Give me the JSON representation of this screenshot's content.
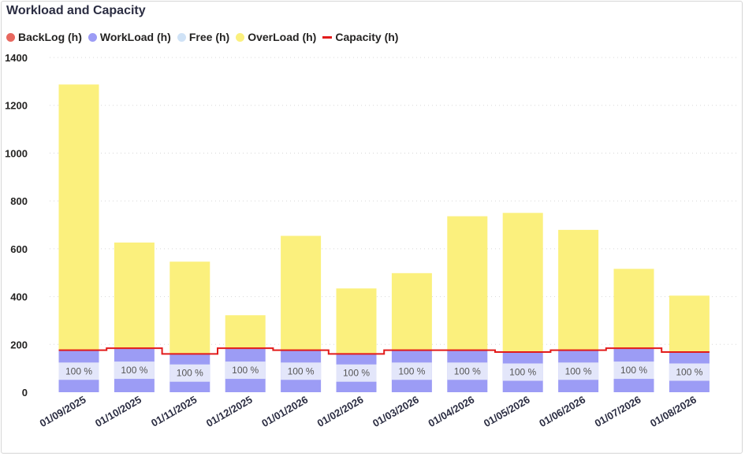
{
  "chart_data": {
    "type": "bar",
    "title": "Workload and Capacity",
    "categories": [
      "01/09/2025",
      "01/10/2025",
      "01/11/2025",
      "01/12/2025",
      "01/01/2026",
      "01/02/2026",
      "01/03/2026",
      "01/04/2026",
      "01/05/2026",
      "01/06/2026",
      "01/07/2026",
      "01/08/2026"
    ],
    "series": [
      {
        "name": "BackLog (h)",
        "color": "#e8685f",
        "values": [
          0,
          0,
          0,
          0,
          0,
          0,
          0,
          0,
          0,
          0,
          0,
          0
        ]
      },
      {
        "name": "WorkLoad (h)",
        "color": "#9c9cf5",
        "values": [
          176,
          184,
          160,
          184,
          176,
          160,
          176,
          176,
          168,
          176,
          184,
          168
        ]
      },
      {
        "name": "Free (h)",
        "color": "#cfe2f6",
        "values": [
          0,
          0,
          0,
          0,
          0,
          0,
          0,
          0,
          0,
          0,
          0,
          0
        ]
      },
      {
        "name": "OverLoad (h)",
        "color": "#fbf07d",
        "values": [
          1111,
          442,
          386,
          138,
          478,
          274,
          322,
          560,
          582,
          503,
          332,
          236
        ]
      },
      {
        "name": "Capacity (h)",
        "color": "#e21b1b",
        "type": "line",
        "values": [
          176,
          184,
          160,
          184,
          176,
          160,
          176,
          176,
          168,
          176,
          184,
          168
        ]
      }
    ],
    "data_labels": [
      "100 %",
      "100 %",
      "100 %",
      "100 %",
      "100 %",
      "100 %",
      "100 %",
      "100 %",
      "100 %",
      "100 %",
      "100 %",
      "100 %"
    ],
    "y_ticks": [
      "0",
      "200",
      "400",
      "600",
      "800",
      "1000",
      "1200",
      "1400"
    ],
    "ylim": [
      0,
      1400
    ],
    "grid": true,
    "legend_position": "top-left",
    "xlabel": "",
    "ylabel": ""
  }
}
